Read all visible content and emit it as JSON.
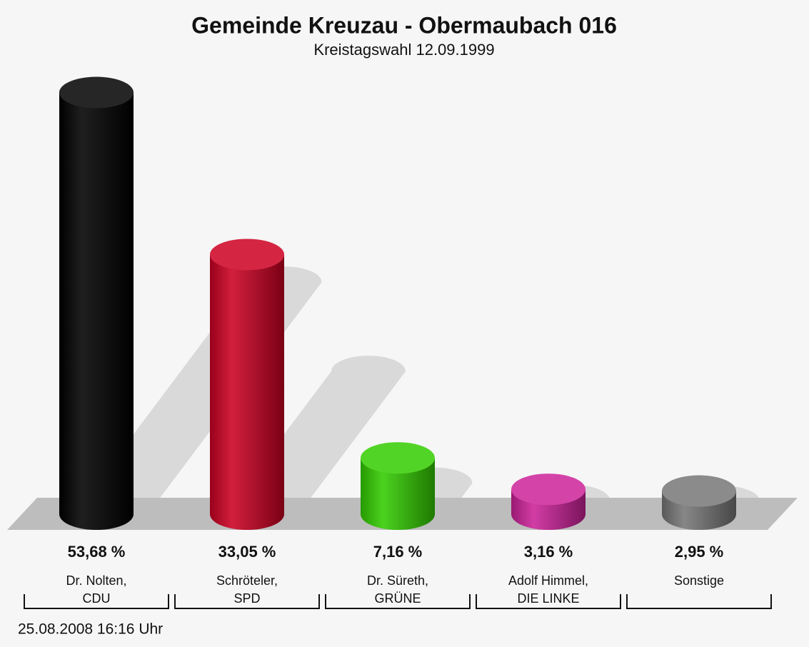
{
  "chart_data": {
    "type": "bar",
    "title": "Gemeinde Kreuzau - Obermaubach 016",
    "subtitle": "Kreistagswahl 12.09.1999",
    "categories": [
      "Dr. Nolten,\nCDU",
      "Schröteler,\nSPD",
      "Dr. Süreth,\nGRÜNE",
      "Adolf Himmel,\nDIE LINKE",
      "Sonstige"
    ],
    "values": [
      53.68,
      33.05,
      7.16,
      3.16,
      2.95
    ],
    "value_labels": [
      "53,68 %",
      "33,05 %",
      "7,16 %",
      "3,16 %",
      "2,95 %"
    ],
    "colors": [
      "#000000",
      "#cc0022",
      "#33cc00",
      "#cc2299",
      "#777777"
    ],
    "footer": "25.08.2008 16:16 Uhr"
  }
}
